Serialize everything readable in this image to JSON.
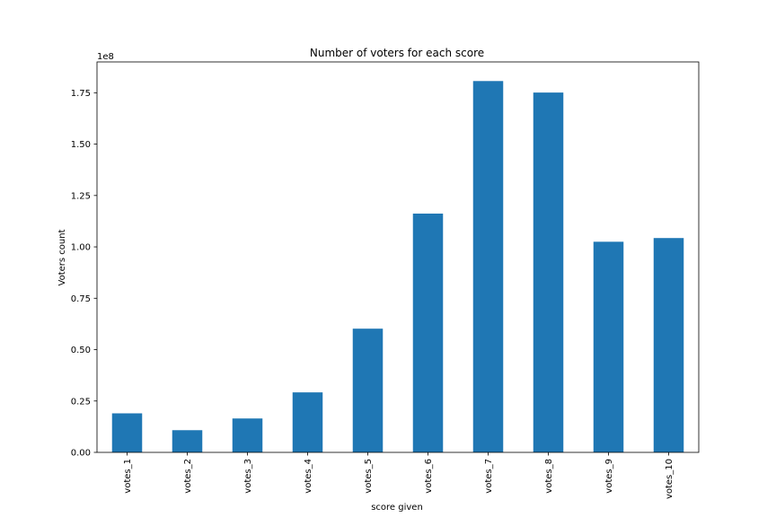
{
  "chart_data": {
    "type": "bar",
    "title": "Number of voters for each score",
    "xlabel": "score given",
    "ylabel": "Voters count",
    "offset_label": "1e8",
    "categories": [
      "votes_1",
      "votes_2",
      "votes_3",
      "votes_4",
      "votes_5",
      "votes_6",
      "votes_7",
      "votes_8",
      "votes_9",
      "votes_10"
    ],
    "values": [
      19000000,
      10800000,
      16500000,
      29200000,
      60200000,
      116200000,
      180700000,
      175100000,
      102500000,
      104300000
    ],
    "y_ticks": [
      0,
      0.25,
      0.5,
      0.75,
      1.0,
      1.25,
      1.5,
      1.75
    ],
    "y_tick_labels": [
      "0.00",
      "0.25",
      "0.50",
      "0.75",
      "1.00",
      "1.25",
      "1.50",
      "1.75"
    ],
    "y_scale": 100000000,
    "ylim": [
      0,
      190000000
    ],
    "grid": false,
    "bar_color": "#1f77b4"
  }
}
